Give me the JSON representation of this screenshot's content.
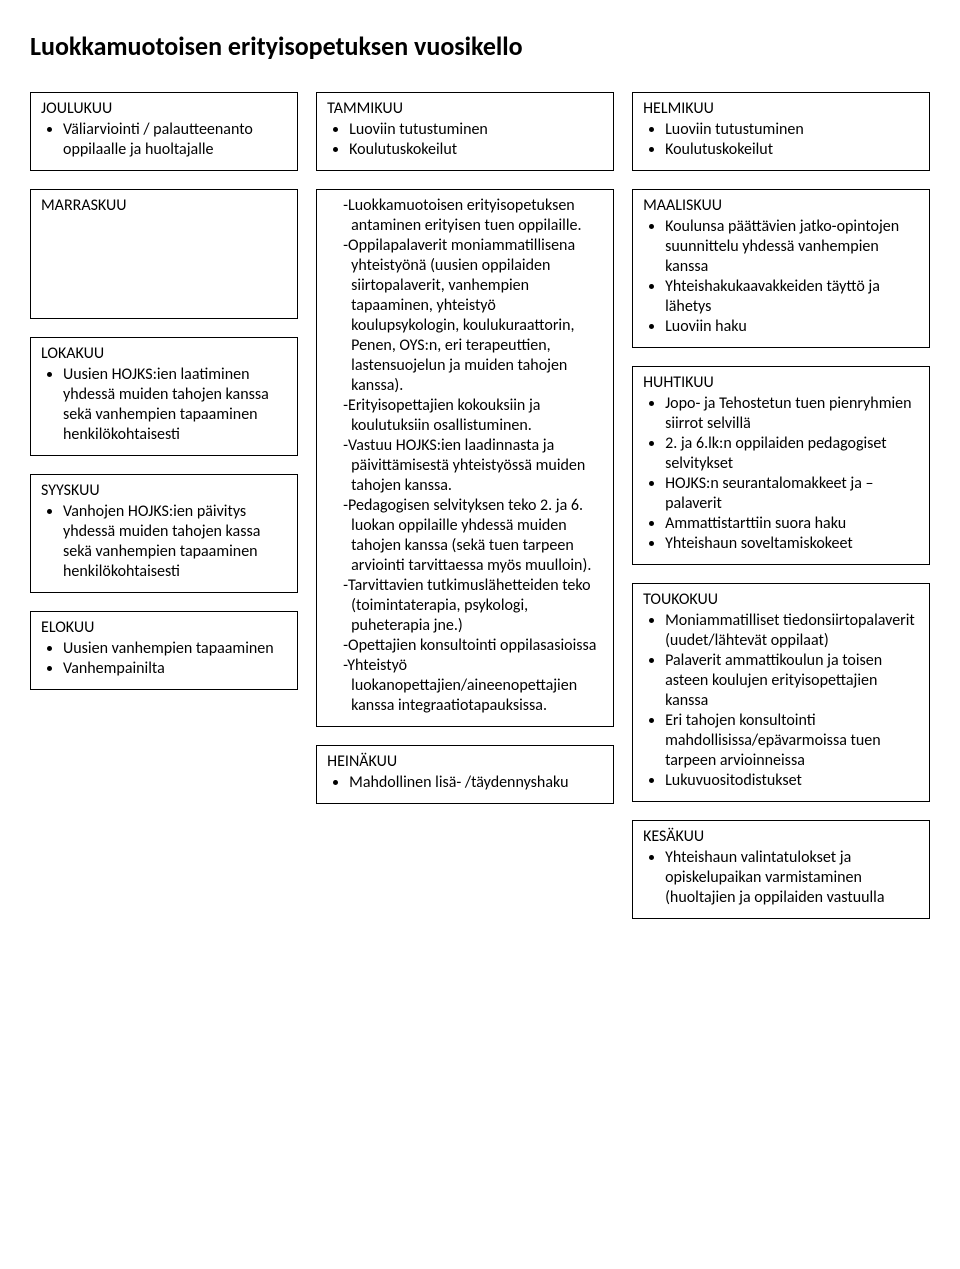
{
  "title": "Luokkamuotoisen erityisopetuksen vuosikello",
  "colors": {
    "border": "#000000",
    "bg": "#ffffff",
    "text": "#000000"
  },
  "fonts": {
    "title_size": 26,
    "body_size": 16
  },
  "left": {
    "joulukuu": {
      "heading": "JOULUKUU",
      "items": [
        "Väliarviointi / palautteenanto oppilaalle ja huoltajalle"
      ]
    },
    "marraskuu": {
      "heading": "MARRASKUU",
      "items": []
    },
    "lokakuu": {
      "heading": "LOKAKUU",
      "items": [
        "Uusien HOJKS:ien laatiminen yhdessä muiden tahojen kanssa  sekä vanhempien tapaaminen henkilökohtaisesti"
      ]
    },
    "syyskuu": {
      "heading": "SYYSKUU",
      "items": [
        "Vanhojen HOJKS:ien päivitys yhdessä muiden tahojen kassa sekä vanhempien tapaaminen henkilökohtaisesti"
      ]
    },
    "elokuu": {
      "heading": "ELOKUU",
      "items": [
        "Uusien vanhempien tapaaminen",
        "Vanhempainilta"
      ]
    }
  },
  "mid": {
    "tammikuu": {
      "heading": "TAMMIKUU",
      "items": [
        "Luoviin tutustuminen",
        "Koulutuskokeilut"
      ]
    },
    "center_notes": [
      "Luokkamuotoisen erityisopetuksen antaminen erityisen tuen oppilaille.",
      "Oppilapalaverit moniammatillisena yhteistyönä (uusien oppilaiden siirtopalaverit, vanhempien tapaaminen, yhteistyö koulupsykologin, koulukuraattorin, Penen, OYS:n, eri terapeuttien, lastensuojelun ja muiden tahojen kanssa).",
      "Erityisopettajien kokouksiin ja koulutuksiin osallistuminen.",
      "Vastuu HOJKS:ien laadinnasta ja päivittämisestä yhteistyössä muiden tahojen kanssa.",
      "Pedagogisen selvityksen teko 2. ja 6. luokan oppilaille yhdessä muiden tahojen kanssa (sekä tuen tarpeen arviointi tarvittaessa myös muulloin).",
      "Tarvittavien tutkimuslähetteiden teko (toimintaterapia, psykologi, puheterapia jne.)",
      "Opettajien konsultointi oppilasasioissa",
      "Yhteistyö luokanopettajien/aineenopettajien kanssa integraatiotapauksissa."
    ],
    "heinakuu": {
      "heading": "HEINÄKUU",
      "items": [
        "Mahdollinen lisä- /täydennyshaku"
      ]
    }
  },
  "right": {
    "helmikuu": {
      "heading": "HELMIKUU",
      "items": [
        "Luoviin tutustuminen",
        "Koulutuskokeilut"
      ]
    },
    "maaliskuu": {
      "heading": "MAALISKUU",
      "items": [
        "Koulunsa päättävien jatko-opintojen suunnittelu yhdessä vanhempien kanssa",
        "Yhteishakukaavakkeiden täyttö ja lähetys",
        "Luoviin haku"
      ]
    },
    "huhtikuu": {
      "heading": "HUHTIKUU",
      "items": [
        "Jopo- ja Tehostetun tuen pienryhmien siirrot selvillä",
        "2. ja 6.lk:n oppilaiden pedagogiset selvitykset",
        "HOJKS:n seurantalomakkeet ja – palaverit",
        "Ammattistarttiin suora haku",
        "Yhteishaun soveltamiskokeet"
      ]
    },
    "toukokuu": {
      "heading": "TOUKOKUU",
      "items": [
        "Moniammatilliset tiedonsiirtopalaverit (uudet/lähtevät oppilaat)",
        "Palaverit ammattikoulun ja toisen asteen koulujen erityisopettajien kanssa",
        "Eri tahojen konsultointi mahdollisissa/epävarmoissa tuen tarpeen arvioinneissa",
        "Lukuvuositodistukset"
      ]
    },
    "kesakuu": {
      "heading": "KESÄKUU",
      "items": [
        "Yhteishaun valintatulokset ja opiskelupaikan varmistaminen (huoltajien ja oppilaiden vastuulla"
      ]
    }
  }
}
